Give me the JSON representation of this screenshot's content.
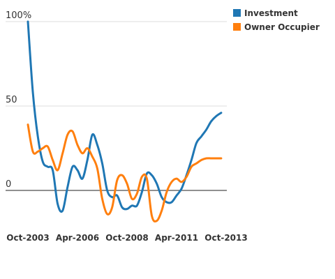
{
  "chart_data": {
    "type": "line",
    "title": "",
    "xlabel": "",
    "ylabel": "",
    "ylim": [
      -20,
      100
    ],
    "y_ticks": [
      {
        "value": 100,
        "label": "100%"
      },
      {
        "value": 50,
        "label": "50"
      },
      {
        "value": 0,
        "label": "0"
      }
    ],
    "x_range": [
      "2003-10",
      "2013-10"
    ],
    "x_ticks": [
      "Oct-2003",
      "Apr-2006",
      "Oct-2008",
      "Apr-2011",
      "Oct-2013"
    ],
    "x_tick_dates": [
      "2003-10",
      "2006-04",
      "2008-10",
      "2011-04",
      "2013-10"
    ],
    "grid": true,
    "legend": "top-right",
    "series": [
      {
        "name": "Investment",
        "color": "#1f77b4",
        "points": [
          [
            "2003-10",
            100
          ],
          [
            "2004-01",
            58
          ],
          [
            "2004-04",
            32
          ],
          [
            "2004-07",
            17
          ],
          [
            "2004-10",
            14
          ],
          [
            "2005-01",
            12
          ],
          [
            "2005-04",
            -8
          ],
          [
            "2005-07",
            -12
          ],
          [
            "2005-10",
            2
          ],
          [
            "2006-01",
            14
          ],
          [
            "2006-04",
            12
          ],
          [
            "2006-07",
            7
          ],
          [
            "2006-10",
            18
          ],
          [
            "2007-01",
            33
          ],
          [
            "2007-04",
            27
          ],
          [
            "2007-07",
            16
          ],
          [
            "2007-10",
            0
          ],
          [
            "2008-01",
            -4
          ],
          [
            "2008-04",
            -3
          ],
          [
            "2008-07",
            -10
          ],
          [
            "2008-10",
            -11
          ],
          [
            "2009-01",
            -9
          ],
          [
            "2009-04",
            -9
          ],
          [
            "2009-07",
            -1
          ],
          [
            "2009-10",
            10
          ],
          [
            "2010-01",
            9
          ],
          [
            "2010-04",
            4
          ],
          [
            "2010-07",
            -4
          ],
          [
            "2010-10",
            -7
          ],
          [
            "2011-01",
            -7
          ],
          [
            "2011-04",
            -3
          ],
          [
            "2011-07",
            1
          ],
          [
            "2011-10",
            9
          ],
          [
            "2012-01",
            18
          ],
          [
            "2012-04",
            28
          ],
          [
            "2012-07",
            32
          ],
          [
            "2012-10",
            36
          ],
          [
            "2013-01",
            41
          ],
          [
            "2013-04",
            44
          ],
          [
            "2013-07",
            46
          ]
        ]
      },
      {
        "name": "Owner Occupier",
        "color": "#ff7f0e",
        "points": [
          [
            "2003-10",
            39
          ],
          [
            "2004-01",
            23
          ],
          [
            "2004-04",
            23
          ],
          [
            "2004-07",
            25
          ],
          [
            "2004-10",
            26
          ],
          [
            "2005-01",
            18
          ],
          [
            "2005-04",
            12
          ],
          [
            "2005-07",
            22
          ],
          [
            "2005-10",
            33
          ],
          [
            "2006-01",
            35
          ],
          [
            "2006-04",
            27
          ],
          [
            "2006-07",
            22
          ],
          [
            "2006-10",
            25
          ],
          [
            "2007-01",
            20
          ],
          [
            "2007-04",
            13
          ],
          [
            "2007-07",
            -5
          ],
          [
            "2007-10",
            -14
          ],
          [
            "2008-01",
            -10
          ],
          [
            "2008-04",
            6
          ],
          [
            "2008-07",
            9
          ],
          [
            "2008-10",
            4
          ],
          [
            "2009-01",
            -5
          ],
          [
            "2009-04",
            -2
          ],
          [
            "2009-07",
            8
          ],
          [
            "2009-10",
            7
          ],
          [
            "2010-01",
            -15
          ],
          [
            "2010-04",
            -18
          ],
          [
            "2010-07",
            -12
          ],
          [
            "2010-10",
            -1
          ],
          [
            "2011-01",
            5
          ],
          [
            "2011-04",
            7
          ],
          [
            "2011-07",
            5
          ],
          [
            "2011-10",
            8
          ],
          [
            "2012-01",
            14
          ],
          [
            "2012-04",
            16
          ],
          [
            "2012-07",
            18
          ],
          [
            "2012-10",
            19
          ],
          [
            "2013-01",
            19
          ],
          [
            "2013-04",
            19
          ],
          [
            "2013-07",
            19
          ]
        ]
      }
    ]
  }
}
